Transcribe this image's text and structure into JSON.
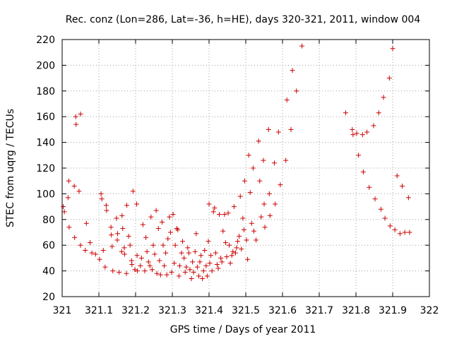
{
  "chart_data": {
    "type": "scatter",
    "title": "Rec. conz (Lon=286, Lat=-36, h=HE), days 320-321, 2011, window 004",
    "xlabel": "GPS time / Days of year 2011",
    "ylabel": "STEC from uqrg / TECUs",
    "xlim": [
      321,
      322
    ],
    "ylim": [
      20,
      220
    ],
    "xticks": [
      "321",
      "321.1",
      "321.2",
      "321.3",
      "321.4",
      "321.5",
      "321.6",
      "321.7",
      "321.8",
      "321.9",
      "322"
    ],
    "xtick_values": [
      321,
      321.1,
      321.2,
      321.3,
      321.4,
      321.5,
      321.6,
      321.7,
      321.8,
      321.9,
      322
    ],
    "yticks": [
      "20",
      "40",
      "60",
      "80",
      "100",
      "120",
      "140",
      "160",
      "180",
      "200",
      "220"
    ],
    "ytick_values": [
      20,
      40,
      60,
      80,
      100,
      120,
      140,
      160,
      180,
      200,
      220
    ],
    "grid": true,
    "marker": "+",
    "marker_color": "#cc0000",
    "series": [
      {
        "points": [
          [
            321.003,
            90
          ],
          [
            321.006,
            86
          ],
          [
            321.016,
            97
          ],
          [
            321.018,
            110
          ],
          [
            321.019,
            74
          ],
          [
            321.033,
            106
          ],
          [
            321.034,
            66
          ],
          [
            321.037,
            160
          ],
          [
            321.038,
            154
          ],
          [
            321.046,
            102
          ],
          [
            321.05,
            162
          ],
          [
            321.05,
            60
          ],
          [
            321.063,
            56
          ],
          [
            321.066,
            77
          ],
          [
            321.076,
            62
          ],
          [
            321.081,
            54
          ],
          [
            321.091,
            53
          ],
          [
            321.102,
            49
          ],
          [
            321.106,
            100
          ],
          [
            321.108,
            96
          ],
          [
            321.112,
            56
          ],
          [
            321.117,
            43
          ],
          [
            321.12,
            91
          ],
          [
            321.121,
            87
          ],
          [
            321.133,
            74
          ],
          [
            321.134,
            68
          ],
          [
            321.136,
            59
          ],
          [
            321.138,
            40
          ],
          [
            321.148,
            81
          ],
          [
            321.15,
            64
          ],
          [
            321.151,
            69
          ],
          [
            321.155,
            39
          ],
          [
            321.162,
            55
          ],
          [
            321.163,
            83
          ],
          [
            321.165,
            73
          ],
          [
            321.169,
            58
          ],
          [
            321.17,
            53
          ],
          [
            321.175,
            38
          ],
          [
            321.176,
            91
          ],
          [
            321.181,
            67
          ],
          [
            321.185,
            60
          ],
          [
            321.189,
            48
          ],
          [
            321.19,
            45
          ],
          [
            321.193,
            102
          ],
          [
            321.198,
            41
          ],
          [
            321.203,
            92
          ],
          [
            321.204,
            52
          ],
          [
            321.205,
            40
          ],
          [
            321.213,
            44
          ],
          [
            321.216,
            50
          ],
          [
            321.22,
            76
          ],
          [
            321.225,
            40
          ],
          [
            321.228,
            66
          ],
          [
            321.231,
            55
          ],
          [
            321.235,
            47
          ],
          [
            321.239,
            44
          ],
          [
            321.242,
            82
          ],
          [
            321.245,
            41
          ],
          [
            321.248,
            60
          ],
          [
            321.252,
            53
          ],
          [
            321.256,
            87
          ],
          [
            321.258,
            38
          ],
          [
            321.262,
            73
          ],
          [
            321.265,
            48
          ],
          [
            321.268,
            37
          ],
          [
            321.272,
            78
          ],
          [
            321.275,
            60
          ],
          [
            321.278,
            44
          ],
          [
            321.282,
            54
          ],
          [
            321.285,
            37
          ],
          [
            321.288,
            65
          ],
          [
            321.292,
            82
          ],
          [
            321.295,
            70
          ],
          [
            321.298,
            39
          ],
          [
            321.302,
            84
          ],
          [
            321.305,
            46
          ],
          [
            321.308,
            60
          ],
          [
            321.312,
            73
          ],
          [
            321.315,
            72
          ],
          [
            321.318,
            36
          ],
          [
            321.32,
            44
          ],
          [
            321.325,
            54
          ],
          [
            321.328,
            63
          ],
          [
            321.332,
            50
          ],
          [
            321.335,
            39
          ],
          [
            321.338,
            43
          ],
          [
            321.342,
            58
          ],
          [
            321.345,
            54
          ],
          [
            321.348,
            41
          ],
          [
            321.352,
            34
          ],
          [
            321.355,
            47
          ],
          [
            321.358,
            39
          ],
          [
            321.362,
            55
          ],
          [
            321.365,
            69
          ],
          [
            321.368,
            43
          ],
          [
            321.372,
            36
          ],
          [
            321.375,
            47
          ],
          [
            321.378,
            52
          ],
          [
            321.382,
            34
          ],
          [
            321.385,
            40
          ],
          [
            321.388,
            56
          ],
          [
            321.392,
            44
          ],
          [
            321.395,
            36
          ],
          [
            321.398,
            63
          ],
          [
            321.4,
            92
          ],
          [
            321.402,
            46
          ],
          [
            321.405,
            52
          ],
          [
            321.408,
            40
          ],
          [
            321.412,
            86
          ],
          [
            321.415,
            89
          ],
          [
            321.418,
            54
          ],
          [
            321.422,
            45
          ],
          [
            321.425,
            42
          ],
          [
            321.428,
            84
          ],
          [
            321.432,
            50
          ],
          [
            321.435,
            47
          ],
          [
            321.438,
            71
          ],
          [
            321.442,
            84
          ],
          [
            321.445,
            62
          ],
          [
            321.448,
            51
          ],
          [
            321.452,
            85
          ],
          [
            321.455,
            60
          ],
          [
            321.458,
            46
          ],
          [
            321.462,
            52
          ],
          [
            321.465,
            55
          ],
          [
            321.468,
            90
          ],
          [
            321.472,
            54
          ],
          [
            321.475,
            58
          ],
          [
            321.478,
            63
          ],
          [
            321.482,
            67
          ],
          [
            321.485,
            98
          ],
          [
            321.488,
            57
          ],
          [
            321.492,
            81
          ],
          [
            321.495,
            72
          ],
          [
            321.497,
            110
          ],
          [
            321.502,
            64
          ],
          [
            321.505,
            49
          ],
          [
            321.508,
            130
          ],
          [
            321.512,
            101
          ],
          [
            321.516,
            77
          ],
          [
            321.52,
            120
          ],
          [
            321.522,
            71
          ],
          [
            321.528,
            64
          ],
          [
            321.535,
            141
          ],
          [
            321.538,
            110
          ],
          [
            321.542,
            82
          ],
          [
            321.548,
            126
          ],
          [
            321.55,
            92
          ],
          [
            321.552,
            74
          ],
          [
            321.562,
            150
          ],
          [
            321.564,
            100
          ],
          [
            321.566,
            83
          ],
          [
            321.578,
            124
          ],
          [
            321.58,
            92
          ],
          [
            321.589,
            148
          ],
          [
            321.594,
            107
          ],
          [
            321.609,
            126
          ],
          [
            321.612,
            173
          ],
          [
            321.623,
            150
          ],
          [
            321.627,
            196
          ],
          [
            321.638,
            180
          ],
          [
            321.653,
            215
          ],
          [
            321.772,
            163
          ],
          [
            321.79,
            150
          ],
          [
            321.792,
            146
          ],
          [
            321.802,
            147
          ],
          [
            321.807,
            130
          ],
          [
            321.818,
            146
          ],
          [
            321.82,
            117
          ],
          [
            321.83,
            148
          ],
          [
            321.836,
            105
          ],
          [
            321.848,
            153
          ],
          [
            321.852,
            96
          ],
          [
            321.862,
            163
          ],
          [
            321.868,
            88
          ],
          [
            321.875,
            175
          ],
          [
            321.879,
            81
          ],
          [
            321.891,
            190
          ],
          [
            321.893,
            75
          ],
          [
            321.9,
            213
          ],
          [
            321.906,
            72
          ],
          [
            321.912,
            114
          ],
          [
            321.92,
            69
          ],
          [
            321.926,
            106
          ],
          [
            321.933,
            70
          ],
          [
            321.943,
            97
          ],
          [
            321.946,
            70
          ]
        ]
      }
    ]
  }
}
